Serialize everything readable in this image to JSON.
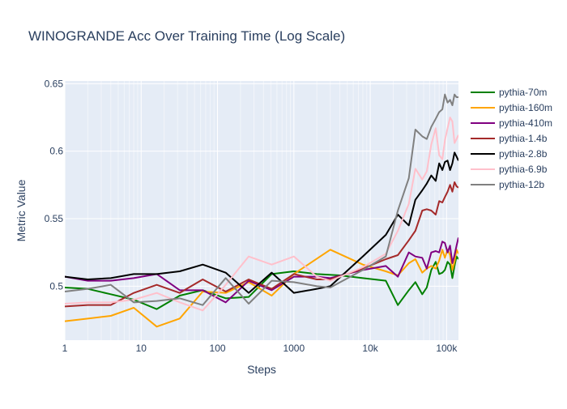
{
  "chart_data": {
    "type": "line",
    "title": "WINOGRANDE Acc Over Training Time (Log Scale)",
    "xlabel": "Steps",
    "ylabel": "Metric Value",
    "x_scale": "log",
    "xlim": [
      1,
      143000
    ],
    "ylim": [
      0.46,
      0.652
    ],
    "x_ticks": [
      {
        "value": 1,
        "label": "1"
      },
      {
        "value": 10,
        "label": "10"
      },
      {
        "value": 100,
        "label": "100"
      },
      {
        "value": 1000,
        "label": "1000"
      },
      {
        "value": 10000,
        "label": "10k"
      },
      {
        "value": 100000,
        "label": "100k"
      }
    ],
    "y_ticks": [
      {
        "value": 0.5,
        "label": "0.5"
      },
      {
        "value": 0.55,
        "label": "0.55"
      },
      {
        "value": 0.6,
        "label": "0.6"
      },
      {
        "value": 0.65,
        "label": "0.65"
      }
    ],
    "grid": true,
    "legend_position": "right",
    "series": [
      {
        "name": "pythia-70m",
        "color": "#008000",
        "points": [
          [
            1,
            0.499
          ],
          [
            2,
            0.498
          ],
          [
            4,
            0.494
          ],
          [
            8,
            0.49
          ],
          [
            16,
            0.483
          ],
          [
            32,
            0.493
          ],
          [
            64,
            0.497
          ],
          [
            128,
            0.491
          ],
          [
            256,
            0.492
          ],
          [
            512,
            0.509
          ],
          [
            1000,
            0.511
          ],
          [
            2000,
            0.509
          ],
          [
            4000,
            0.508
          ],
          [
            8000,
            0.506
          ],
          [
            16000,
            0.504
          ],
          [
            23000,
            0.486
          ],
          [
            32000,
            0.497
          ],
          [
            39000,
            0.503
          ],
          [
            48000,
            0.494
          ],
          [
            55000,
            0.499
          ],
          [
            63000,
            0.512
          ],
          [
            72000,
            0.518
          ],
          [
            80000,
            0.509
          ],
          [
            88000,
            0.51
          ],
          [
            95000,
            0.512
          ],
          [
            103000,
            0.518
          ],
          [
            111000,
            0.516
          ],
          [
            119000,
            0.506
          ],
          [
            127000,
            0.515
          ],
          [
            135000,
            0.522
          ],
          [
            143000,
            0.52
          ]
        ]
      },
      {
        "name": "pythia-160m",
        "color": "#FFA500",
        "points": [
          [
            1,
            0.474
          ],
          [
            2,
            0.476
          ],
          [
            4,
            0.478
          ],
          [
            8,
            0.484
          ],
          [
            16,
            0.47
          ],
          [
            32,
            0.476
          ],
          [
            64,
            0.496
          ],
          [
            128,
            0.495
          ],
          [
            256,
            0.503
          ],
          [
            512,
            0.493
          ],
          [
            1000,
            0.509
          ],
          [
            3000,
            0.527
          ],
          [
            8000,
            0.516
          ],
          [
            16000,
            0.511
          ],
          [
            23000,
            0.508
          ],
          [
            32000,
            0.517
          ],
          [
            39000,
            0.52
          ],
          [
            48000,
            0.51
          ],
          [
            55000,
            0.513
          ],
          [
            63000,
            0.515
          ],
          [
            72000,
            0.513
          ],
          [
            80000,
            0.519
          ],
          [
            88000,
            0.527
          ],
          [
            95000,
            0.521
          ],
          [
            103000,
            0.527
          ],
          [
            111000,
            0.523
          ],
          [
            119000,
            0.512
          ],
          [
            127000,
            0.518
          ],
          [
            135000,
            0.527
          ],
          [
            143000,
            0.524
          ]
        ]
      },
      {
        "name": "pythia-410m",
        "color": "#800080",
        "points": [
          [
            1,
            0.507
          ],
          [
            2,
            0.504
          ],
          [
            4,
            0.504
          ],
          [
            8,
            0.506
          ],
          [
            16,
            0.509
          ],
          [
            32,
            0.497
          ],
          [
            64,
            0.497
          ],
          [
            128,
            0.488
          ],
          [
            256,
            0.504
          ],
          [
            512,
            0.497
          ],
          [
            1000,
            0.507
          ],
          [
            2000,
            0.507
          ],
          [
            3000,
            0.506
          ],
          [
            8000,
            0.512
          ],
          [
            16000,
            0.515
          ],
          [
            23000,
            0.507
          ],
          [
            32000,
            0.525
          ],
          [
            39000,
            0.522
          ],
          [
            48000,
            0.521
          ],
          [
            55000,
            0.513
          ],
          [
            63000,
            0.525
          ],
          [
            72000,
            0.526
          ],
          [
            80000,
            0.525
          ],
          [
            88000,
            0.533
          ],
          [
            95000,
            0.532
          ],
          [
            103000,
            0.525
          ],
          [
            111000,
            0.53
          ],
          [
            119000,
            0.517
          ],
          [
            127000,
            0.523
          ],
          [
            135000,
            0.53
          ],
          [
            143000,
            0.536
          ]
        ]
      },
      {
        "name": "pythia-1.4b",
        "color": "#A52A2A",
        "points": [
          [
            1,
            0.485
          ],
          [
            2,
            0.486
          ],
          [
            4,
            0.486
          ],
          [
            8,
            0.495
          ],
          [
            16,
            0.501
          ],
          [
            32,
            0.495
          ],
          [
            64,
            0.505
          ],
          [
            128,
            0.496
          ],
          [
            256,
            0.505
          ],
          [
            512,
            0.498
          ],
          [
            1000,
            0.509
          ],
          [
            2000,
            0.505
          ],
          [
            3000,
            0.505
          ],
          [
            8000,
            0.513
          ],
          [
            16000,
            0.52
          ],
          [
            23000,
            0.523
          ],
          [
            32000,
            0.534
          ],
          [
            39000,
            0.541
          ],
          [
            48000,
            0.556
          ],
          [
            55000,
            0.557
          ],
          [
            63000,
            0.556
          ],
          [
            72000,
            0.553
          ],
          [
            80000,
            0.563
          ],
          [
            88000,
            0.562
          ],
          [
            95000,
            0.566
          ],
          [
            103000,
            0.57
          ],
          [
            111000,
            0.575
          ],
          [
            119000,
            0.57
          ],
          [
            127000,
            0.577
          ],
          [
            135000,
            0.574
          ],
          [
            143000,
            0.573
          ]
        ]
      },
      {
        "name": "pythia-2.8b",
        "color": "#000000",
        "points": [
          [
            1,
            0.507
          ],
          [
            2,
            0.505
          ],
          [
            4,
            0.506
          ],
          [
            8,
            0.509
          ],
          [
            16,
            0.509
          ],
          [
            32,
            0.511
          ],
          [
            64,
            0.516
          ],
          [
            128,
            0.51
          ],
          [
            256,
            0.495
          ],
          [
            512,
            0.51
          ],
          [
            1000,
            0.495
          ],
          [
            2000,
            0.498
          ],
          [
            3000,
            0.5
          ],
          [
            8000,
            0.522
          ],
          [
            16000,
            0.538
          ],
          [
            23000,
            0.553
          ],
          [
            32000,
            0.545
          ],
          [
            39000,
            0.564
          ],
          [
            48000,
            0.571
          ],
          [
            55000,
            0.576
          ],
          [
            63000,
            0.582
          ],
          [
            72000,
            0.578
          ],
          [
            80000,
            0.591
          ],
          [
            88000,
            0.586
          ],
          [
            95000,
            0.592
          ],
          [
            103000,
            0.593
          ],
          [
            111000,
            0.586
          ],
          [
            119000,
            0.591
          ],
          [
            127000,
            0.599
          ],
          [
            135000,
            0.596
          ],
          [
            143000,
            0.593
          ]
        ]
      },
      {
        "name": "pythia-6.9b",
        "color": "#FFC0CB",
        "points": [
          [
            1,
            0.487
          ],
          [
            2,
            0.488
          ],
          [
            4,
            0.488
          ],
          [
            8,
            0.49
          ],
          [
            16,
            0.495
          ],
          [
            32,
            0.488
          ],
          [
            64,
            0.482
          ],
          [
            128,
            0.501
          ],
          [
            256,
            0.522
          ],
          [
            512,
            0.516
          ],
          [
            1000,
            0.522
          ],
          [
            2000,
            0.507
          ],
          [
            3000,
            0.504
          ],
          [
            8000,
            0.514
          ],
          [
            16000,
            0.524
          ],
          [
            23000,
            0.541
          ],
          [
            32000,
            0.561
          ],
          [
            39000,
            0.587
          ],
          [
            48000,
            0.579
          ],
          [
            55000,
            0.585
          ],
          [
            63000,
            0.605
          ],
          [
            72000,
            0.617
          ],
          [
            80000,
            0.597
          ],
          [
            88000,
            0.594
          ],
          [
            95000,
            0.608
          ],
          [
            103000,
            0.617
          ],
          [
            111000,
            0.625
          ],
          [
            119000,
            0.622
          ],
          [
            127000,
            0.606
          ],
          [
            135000,
            0.609
          ],
          [
            143000,
            0.612
          ]
        ]
      },
      {
        "name": "pythia-12b",
        "color": "#808080",
        "points": [
          [
            1,
            0.496
          ],
          [
            2,
            0.498
          ],
          [
            4,
            0.501
          ],
          [
            8,
            0.488
          ],
          [
            16,
            0.489
          ],
          [
            32,
            0.491
          ],
          [
            64,
            0.486
          ],
          [
            128,
            0.506
          ],
          [
            256,
            0.487
          ],
          [
            512,
            0.504
          ],
          [
            1000,
            0.503
          ],
          [
            2000,
            0.5
          ],
          [
            3000,
            0.499
          ],
          [
            8000,
            0.512
          ],
          [
            16000,
            0.522
          ],
          [
            23000,
            0.556
          ],
          [
            32000,
            0.58
          ],
          [
            39000,
            0.616
          ],
          [
            48000,
            0.611
          ],
          [
            55000,
            0.609
          ],
          [
            63000,
            0.618
          ],
          [
            72000,
            0.624
          ],
          [
            80000,
            0.629
          ],
          [
            88000,
            0.631
          ],
          [
            95000,
            0.642
          ],
          [
            103000,
            0.636
          ],
          [
            111000,
            0.638
          ],
          [
            119000,
            0.634
          ],
          [
            127000,
            0.642
          ],
          [
            135000,
            0.64
          ],
          [
            143000,
            0.64
          ]
        ]
      }
    ]
  }
}
